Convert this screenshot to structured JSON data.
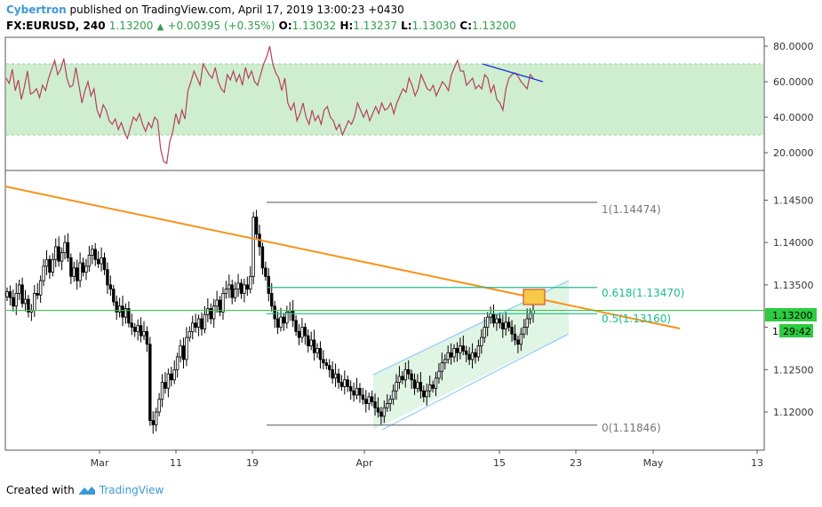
{
  "header": {
    "author": "Cybertron",
    "published_text": "published on TradingView.com, April 17, 2019 13:00:23 +0430",
    "symbol": "FX:EURUSD, 240",
    "last": "1.13200",
    "change": "+0.00395 (+0.35%)",
    "o_label": "O:",
    "o": "1.13032",
    "h_label": "H:",
    "h": "1.13237",
    "l_label": "L:",
    "l": "1.13030",
    "c_label": "C:",
    "c": "1.13200"
  },
  "footer": {
    "created_with": "Created with",
    "brand": "TradingView"
  },
  "colors": {
    "rsi_line": "#b5405d",
    "rsi_band": "#cfeecf",
    "trendline": "#f7931a",
    "fib_levels": "#1bbd8e",
    "fib_extremes": "#777777",
    "price_line": "#2ecc40",
    "channel": "#90caf9",
    "rsi_trendline": "#1a2fd6",
    "highlight_fill": "#f7c948",
    "highlight_stroke": "#e05c2c"
  },
  "chart_data": [
    {
      "type": "line",
      "indicator": "RSI",
      "ylim": [
        10,
        85
      ],
      "yticks": [
        "80.0000",
        "60.0000",
        "40.0000",
        "20.0000"
      ],
      "band": [
        30,
        70
      ],
      "series": [
        {
          "values": [
            62,
            59,
            67,
            55,
            61,
            50,
            57,
            66,
            53,
            54,
            56,
            51,
            58,
            55,
            62,
            67,
            72,
            64,
            67,
            73,
            62,
            57,
            58,
            68,
            58,
            48,
            55,
            60,
            52,
            56,
            44,
            40,
            47,
            44,
            38,
            36,
            39,
            33,
            37,
            32,
            28,
            34,
            40,
            38,
            42,
            36,
            32,
            37,
            34,
            40,
            38,
            22,
            15,
            14,
            26,
            32,
            42,
            36,
            44,
            39,
            55,
            60,
            66,
            62,
            58,
            70,
            67,
            64,
            62,
            68,
            60,
            56,
            54,
            64,
            61,
            66,
            60,
            64,
            58,
            68,
            62,
            66,
            60,
            58,
            64,
            70,
            74,
            80,
            70,
            65,
            62,
            55,
            62,
            48,
            44,
            48,
            38,
            42,
            48,
            40,
            36,
            44,
            38,
            41,
            36,
            44,
            46,
            40,
            38,
            33,
            36,
            30,
            34,
            38,
            36,
            40,
            48,
            44,
            40,
            44,
            38,
            42,
            46,
            42,
            48,
            44,
            45,
            48,
            42,
            48,
            52,
            56,
            54,
            62,
            58,
            52,
            56,
            64,
            60,
            56,
            55,
            58,
            52,
            56,
            60,
            58,
            55,
            64,
            68,
            72,
            66,
            66,
            58,
            60,
            62,
            56,
            58,
            56,
            64,
            62,
            54,
            58,
            50,
            48,
            44,
            56,
            62,
            64,
            65,
            63,
            60,
            58,
            56,
            64,
            62
          ]
        }
      ],
      "trendline": [
        [
          70,
          51
        ],
        [
          60,
          66
        ]
      ]
    },
    {
      "type": "candlestick",
      "symbol": "FX:EURUSD",
      "interval": "240",
      "ylim": [
        1.1155,
        1.1485
      ],
      "yticks": [
        "1.14500",
        "1.14000",
        "1.13500",
        "1.13000",
        "1.12500",
        "1.12000"
      ],
      "xticks": [
        "Mar",
        "11",
        "19",
        "Apr",
        "15",
        "23",
        "May",
        "13"
      ],
      "close_series": [
        1.1342,
        1.1335,
        1.1325,
        1.134,
        1.135,
        1.1328,
        1.1333,
        1.1318,
        1.132,
        1.134,
        1.1338,
        1.1355,
        1.1372,
        1.138,
        1.1365,
        1.138,
        1.1395,
        1.1378,
        1.1388,
        1.14,
        1.1382,
        1.136,
        1.137,
        1.1355,
        1.1376,
        1.1365,
        1.1372,
        1.1385,
        1.1392,
        1.138,
        1.1375,
        1.1382,
        1.1368,
        1.135,
        1.1345,
        1.133,
        1.1318,
        1.1325,
        1.1312,
        1.1322,
        1.1305,
        1.13,
        1.1295,
        1.1302,
        1.129,
        1.1295,
        1.128,
        1.119,
        1.1185,
        1.12,
        1.1215,
        1.1235,
        1.1228,
        1.1245,
        1.1238,
        1.125,
        1.1265,
        1.1278,
        1.1262,
        1.1288,
        1.1295,
        1.1305,
        1.13,
        1.131,
        1.1298,
        1.1315,
        1.1322,
        1.131,
        1.1325,
        1.1332,
        1.1318,
        1.134,
        1.1345,
        1.135,
        1.1335,
        1.1345,
        1.1352,
        1.134,
        1.135,
        1.1345,
        1.136,
        1.143,
        1.141,
        1.1395,
        1.137,
        1.136,
        1.134,
        1.1325,
        1.131,
        1.13,
        1.1312,
        1.1305,
        1.1318,
        1.132,
        1.1308,
        1.1295,
        1.1288,
        1.13,
        1.129,
        1.1278,
        1.1285,
        1.127,
        1.1275,
        1.1262,
        1.1258,
        1.1255,
        1.125,
        1.124,
        1.1245,
        1.1235,
        1.123,
        1.1238,
        1.123,
        1.1225,
        1.122,
        1.1228,
        1.122,
        1.1215,
        1.121,
        1.1218,
        1.1212,
        1.1205,
        1.12,
        1.1195,
        1.1205,
        1.121,
        1.1215,
        1.1225,
        1.1235,
        1.1242,
        1.1238,
        1.125,
        1.1245,
        1.1238,
        1.1228,
        1.1235,
        1.1225,
        1.1218,
        1.1225,
        1.1232,
        1.1228,
        1.124,
        1.1248,
        1.1258,
        1.1262,
        1.127,
        1.1265,
        1.1275,
        1.127,
        1.1278,
        1.1272,
        1.1268,
        1.1262,
        1.127,
        1.1265,
        1.1278,
        1.1288,
        1.13,
        1.1312,
        1.1316,
        1.1305,
        1.131,
        1.1305,
        1.1298,
        1.1306,
        1.13,
        1.1292,
        1.1285,
        1.128,
        1.1292,
        1.13,
        1.131,
        1.1316,
        1.132
      ]
    }
  ],
  "annotations": {
    "fib_1": "1(1.14474)",
    "fib_0618": "0.618(1.13470)",
    "fib_05": "0.5(1.13160)",
    "fib_0": "0(1.11846)",
    "price_tag": "1.13200",
    "countdown": "29:42",
    "countdown_prefix": "1"
  }
}
